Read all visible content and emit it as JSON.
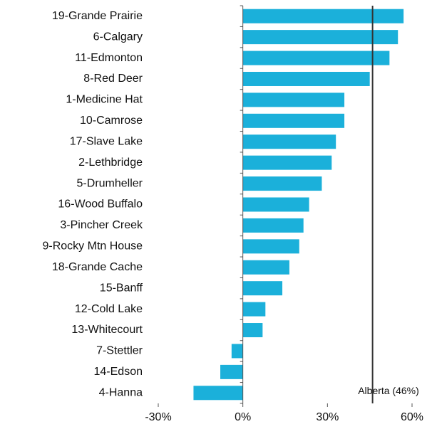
{
  "chart_data": {
    "type": "hbar",
    "categories": [
      "19-Grande Prairie",
      "6-Calgary",
      "11-Edmonton",
      "8-Red Deer",
      "1-Medicine Hat",
      "10-Camrose",
      "17-Slave Lake",
      "2-Lethbridge",
      "5-Drumheller",
      "16-Wood Buffalo",
      "3-Pincher Creek",
      "9-Rocky Mtn House",
      "18-Grande Cache",
      "15-Banff",
      "12-Cold Lake",
      "13-Whitecourt",
      "7-Stettler",
      "14-Edson",
      "4-Hanna"
    ],
    "values": [
      57,
      55,
      52,
      45,
      36,
      36,
      33,
      31.5,
      28,
      23.5,
      21.5,
      20,
      16.5,
      14,
      8,
      7,
      -4,
      -8,
      -17.5
    ],
    "color": "#1bb0da",
    "xlim": [
      -30,
      60
    ],
    "xticks": [
      {
        "value": -30,
        "label": "-30%"
      },
      {
        "value": 0,
        "label": "0%"
      },
      {
        "value": 30,
        "label": "30%"
      },
      {
        "value": 60,
        "label": "60%"
      }
    ],
    "reference_line": {
      "value": 46,
      "label": "Alberta (46%)",
      "color": "#333333"
    }
  }
}
